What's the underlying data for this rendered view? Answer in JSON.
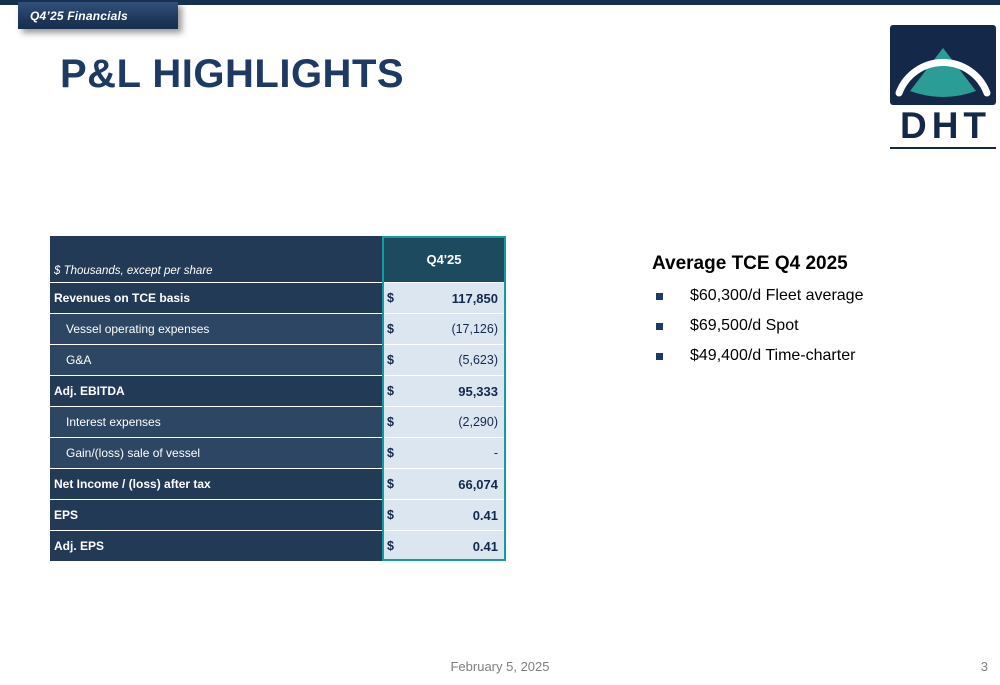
{
  "slide": {
    "tag": "Q4’25 Financials",
    "title": "P&L HIGHLIGHTS",
    "footer": {
      "date": "February 5, 2025",
      "page": "3"
    }
  },
  "logo": {
    "text": "DHT"
  },
  "colors": {
    "navy": "#1e3a63",
    "table_row_dark": "#223a55",
    "table_row_light": "#2c4663",
    "value_column_bg": "#dce6f1",
    "teal_accent": "#149ba1",
    "logo_teal": "#2c9c96"
  },
  "table": {
    "header": {
      "label": "$ Thousands, except per share",
      "value": "Q4'25"
    },
    "rows": [
      {
        "label": "Revenues on TCE basis",
        "currency": "$",
        "value": "117,850",
        "bold": true,
        "indent": false
      },
      {
        "label": "Vessel operating expenses",
        "currency": "$",
        "value": "(17,126)",
        "bold": false,
        "indent": true
      },
      {
        "label": "G&A",
        "currency": "$",
        "value": "(5,623)",
        "bold": false,
        "indent": true
      },
      {
        "label": "Adj. EBITDA",
        "currency": "$",
        "value": "95,333",
        "bold": true,
        "indent": false
      },
      {
        "label": "Interest expenses",
        "currency": "$",
        "value": "(2,290)",
        "bold": false,
        "indent": true
      },
      {
        "label": "Gain/(loss) sale of vessel",
        "currency": "$",
        "value": "-",
        "bold": false,
        "indent": true
      },
      {
        "label": "Net Income / (loss) after tax",
        "currency": "$",
        "value": "66,074",
        "bold": true,
        "indent": false
      },
      {
        "label": "EPS",
        "currency": "$",
        "value": "0.41",
        "bold": true,
        "indent": false
      },
      {
        "label": "Adj. EPS",
        "currency": "$",
        "value": "0.41",
        "bold": true,
        "indent": false
      }
    ]
  },
  "tce": {
    "heading": "Average TCE Q4 2025",
    "items": [
      "$60,300/d Fleet average",
      "$69,500/d Spot",
      "$49,400/d Time-charter"
    ]
  }
}
